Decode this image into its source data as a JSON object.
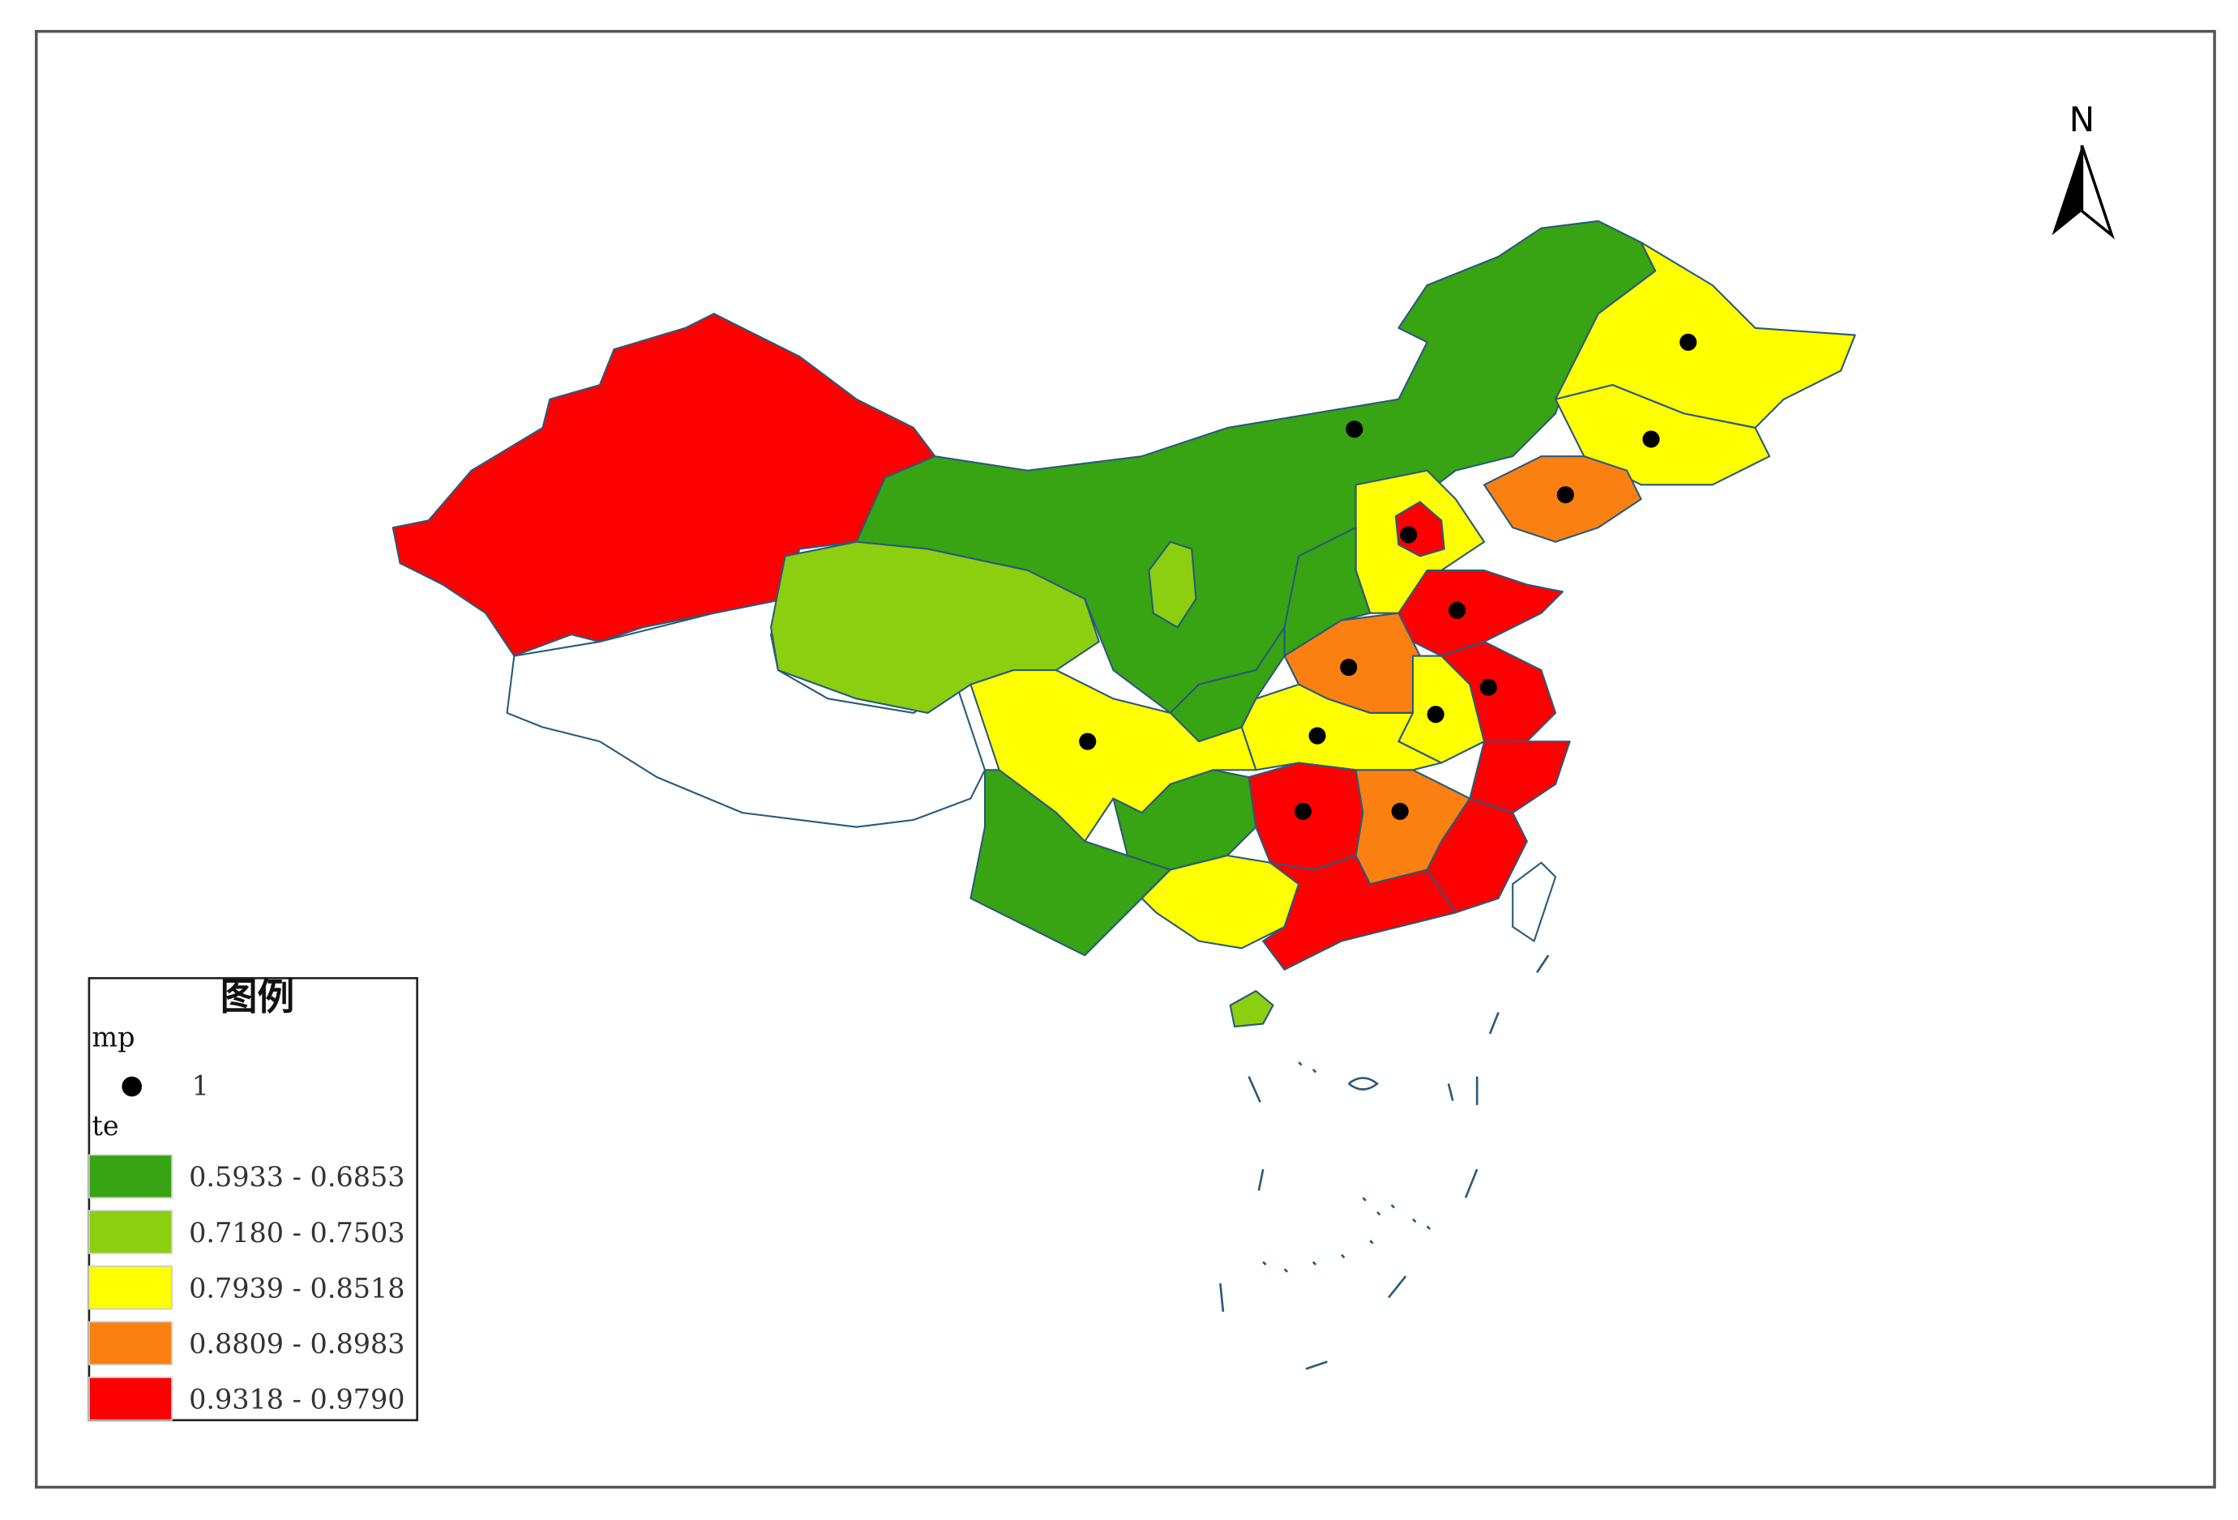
{
  "north": "N",
  "legend": {
    "title": "图例",
    "groups": [
      {
        "name": "mp",
        "items": [
          {
            "label": "1"
          }
        ]
      },
      {
        "name": "te",
        "items": [
          {
            "label": "0.5933 - 0.6853",
            "color": "#38a313"
          },
          {
            "label": "0.7180 - 0.7503",
            "color": "#8ccf10"
          },
          {
            "label": "0.7939 - 0.8518",
            "color": "#ffff00"
          },
          {
            "label": "0.8809 - 0.8983",
            "color": "#fb8012"
          },
          {
            "label": "0.9318 - 0.9790",
            "color": "#ff0000"
          }
        ]
      }
    ]
  }
}
